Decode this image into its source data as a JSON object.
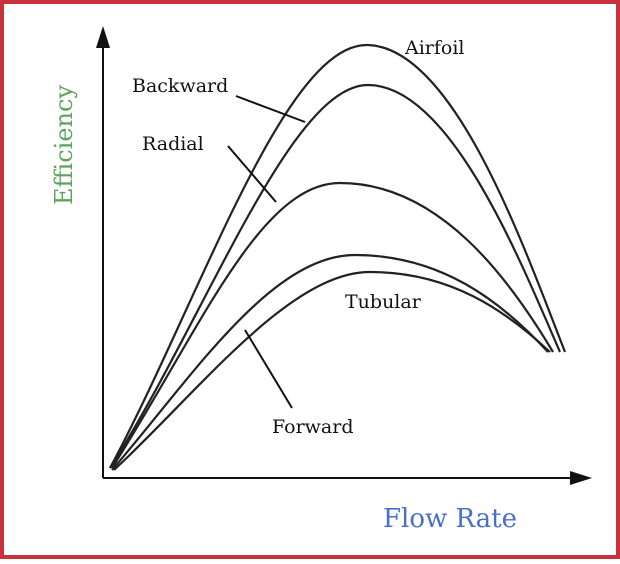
{
  "y_axis_label": "Efficiency",
  "x_axis_label": "Flow Rate",
  "curves": [
    {
      "label": "Airfoil"
    },
    {
      "label": "Backward"
    },
    {
      "label": "Radial"
    },
    {
      "label": "Tubular"
    },
    {
      "label": "Forward"
    }
  ]
}
